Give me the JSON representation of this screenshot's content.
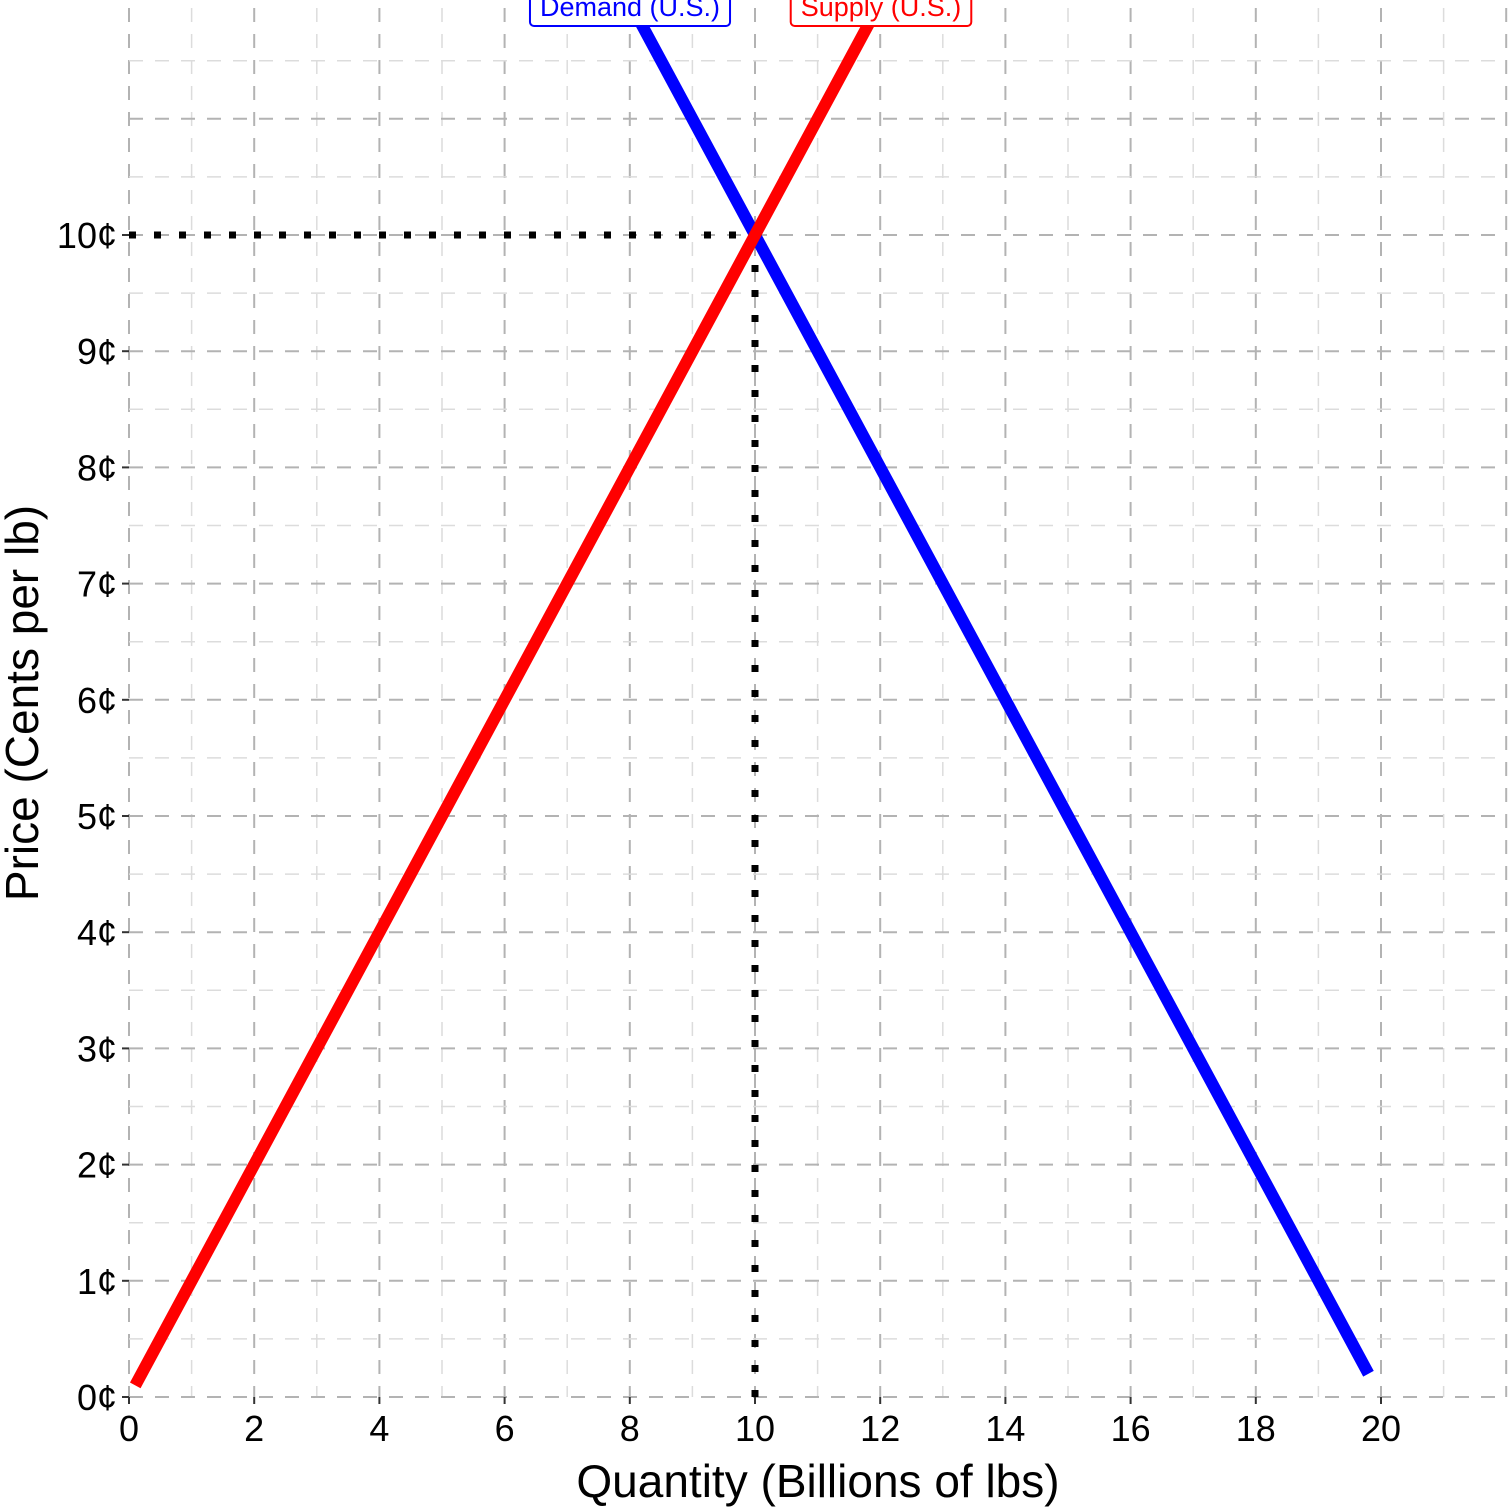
{
  "chart_data": {
    "type": "line",
    "title": "",
    "xlabel": "Quantity (Billions of lbs)",
    "ylabel": "Price (Cents per lb)",
    "xlim": [
      0,
      22
    ],
    "ylim": [
      0,
      11.5
    ],
    "x_ticks": [
      0,
      2,
      4,
      6,
      8,
      10,
      12,
      14,
      16,
      18,
      20
    ],
    "x_tick_labels": [
      "0",
      "2",
      "4",
      "6",
      "8",
      "10",
      "12",
      "14",
      "16",
      "18",
      "20"
    ],
    "y_ticks": [
      0,
      1,
      2,
      3,
      4,
      5,
      6,
      7,
      8,
      9,
      10
    ],
    "y_tick_labels": [
      "0¢",
      "1¢",
      "2¢",
      "3¢",
      "4¢",
      "5¢",
      "6¢",
      "7¢",
      "8¢",
      "9¢",
      "10¢"
    ],
    "grid": true,
    "series": [
      {
        "name": "Demand (U.S.)",
        "color": "#0000ff",
        "points": [
          [
            8,
            12
          ],
          [
            19.8,
            0.2
          ]
        ]
      },
      {
        "name": "Supply (U.S.)",
        "color": "#ff0000",
        "points": [
          [
            0.1,
            0.1
          ],
          [
            12,
            12
          ]
        ]
      }
    ],
    "reference_lines": [
      {
        "type": "horizontal",
        "y": 10,
        "from_x": 0,
        "to_x": 10,
        "style": "dotted",
        "color": "#000000"
      },
      {
        "type": "vertical",
        "x": 10,
        "from_y": 0,
        "to_y": 10,
        "style": "dotted",
        "color": "#000000"
      }
    ]
  }
}
